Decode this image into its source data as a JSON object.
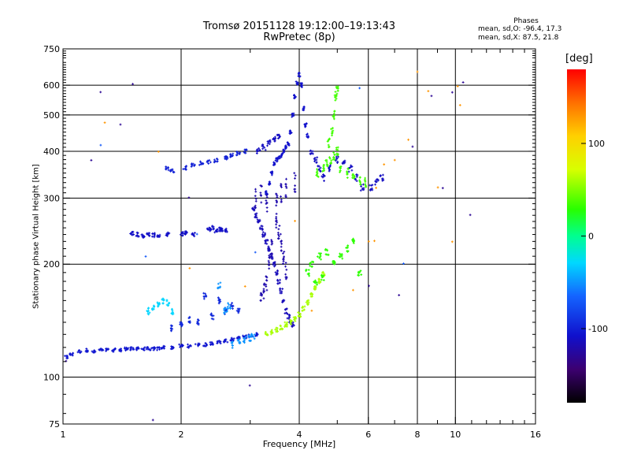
{
  "chart_data": {
    "type": "scatter",
    "title": "Tromsø 20151128 19:12:00–19:13:43",
    "subtitle": "RwPretec (8p)",
    "stats": {
      "heading": "Phases",
      "line_o": "mean, sd,O: -96.4, 17.3",
      "line_x": "mean, sd,X:  87.5, 21.8"
    },
    "xlabel": "Frequency [MHz]",
    "ylabel": "Stationary phase Virtual Height [km]",
    "xscale": "log",
    "yscale": "log",
    "xlim": [
      1,
      16
    ],
    "ylim": [
      75,
      750
    ],
    "grid": true,
    "x_ticks": [
      "1",
      "2",
      "4",
      "6",
      "8",
      "10",
      "16"
    ],
    "x_tick_values": [
      1,
      2,
      4,
      6,
      8,
      10,
      16
    ],
    "x_grid_values": [
      2,
      4,
      6,
      8,
      10
    ],
    "x_minor_values": [
      3,
      5,
      7,
      9,
      11,
      12,
      13,
      14,
      15
    ],
    "y_ticks": [
      "75",
      "100",
      "200",
      "300",
      "400",
      "500",
      "600",
      "750"
    ],
    "y_tick_values": [
      75,
      100,
      200,
      300,
      400,
      500,
      600,
      750
    ],
    "y_grid_values": [
      100,
      200,
      300,
      400,
      500,
      600
    ],
    "colorbar": {
      "label": "[deg]",
      "range": [
        -180,
        180
      ],
      "tick_labels": [
        "100",
        "0",
        "-100"
      ],
      "tick_values": [
        100,
        0,
        -100
      ]
    },
    "series": [
      {
        "phase": -105,
        "spread_x": 0.012,
        "spread_y": 0.01,
        "points": [
          [
            1.02,
            113
          ],
          [
            1.05,
            115
          ],
          [
            1.1,
            117
          ],
          [
            1.15,
            118
          ],
          [
            1.2,
            117
          ],
          [
            1.25,
            118
          ],
          [
            1.3,
            118
          ],
          [
            1.35,
            118
          ],
          [
            1.4,
            118
          ],
          [
            1.45,
            119
          ],
          [
            1.5,
            119
          ],
          [
            1.55,
            119
          ],
          [
            1.6,
            119
          ],
          [
            1.65,
            119
          ],
          [
            1.7,
            119
          ],
          [
            1.75,
            119
          ],
          [
            1.8,
            120
          ],
          [
            1.9,
            120
          ],
          [
            2.0,
            121
          ],
          [
            2.1,
            121
          ],
          [
            2.2,
            122
          ],
          [
            2.3,
            122
          ],
          [
            2.4,
            123
          ],
          [
            2.5,
            124
          ],
          [
            2.6,
            125
          ],
          [
            2.7,
            126
          ],
          [
            2.8,
            127
          ],
          [
            2.9,
            128
          ],
          [
            3.0,
            129
          ],
          [
            3.1,
            130
          ]
        ]
      },
      {
        "phase": -110,
        "spread_x": 0.01,
        "spread_y": 0.012,
        "points": [
          [
            1.5,
            242
          ],
          [
            1.55,
            240
          ],
          [
            1.6,
            238
          ],
          [
            1.65,
            240
          ],
          [
            1.7,
            239
          ],
          [
            1.75,
            238
          ],
          [
            1.85,
            240
          ],
          [
            2.0,
            241
          ],
          [
            2.05,
            242
          ],
          [
            2.15,
            240
          ],
          [
            2.35,
            248
          ],
          [
            2.4,
            250
          ],
          [
            2.45,
            246
          ],
          [
            2.5,
            248
          ],
          [
            2.55,
            247
          ],
          [
            2.6,
            246
          ]
        ]
      },
      {
        "phase": -100,
        "spread_x": 0.012,
        "spread_y": 0.012,
        "points": [
          [
            1.85,
            360
          ],
          [
            1.9,
            355
          ],
          [
            2.05,
            362
          ],
          [
            2.15,
            368
          ],
          [
            2.25,
            372
          ],
          [
            2.35,
            375
          ],
          [
            2.45,
            378
          ],
          [
            2.6,
            385
          ],
          [
            2.7,
            390
          ],
          [
            2.8,
            395
          ],
          [
            2.9,
            400
          ]
        ]
      },
      {
        "phase": -95,
        "spread_x": 0.008,
        "spread_y": 0.02,
        "points": [
          [
            2.2,
            140
          ],
          [
            2.4,
            145
          ],
          [
            2.6,
            150
          ],
          [
            2.7,
            155
          ],
          [
            2.8,
            150
          ],
          [
            2.5,
            160
          ],
          [
            2.3,
            165
          ],
          [
            2.0,
            138
          ],
          [
            1.9,
            135
          ],
          [
            2.1,
            142
          ]
        ]
      },
      {
        "phase": -115,
        "spread_x": 0.008,
        "spread_y": 0.015,
        "points": [
          [
            3.05,
            280
          ],
          [
            3.1,
            270
          ],
          [
            3.15,
            260
          ],
          [
            3.2,
            250
          ],
          [
            3.25,
            240
          ],
          [
            3.3,
            230
          ],
          [
            3.35,
            220
          ],
          [
            3.4,
            210
          ],
          [
            3.45,
            200
          ],
          [
            3.5,
            190
          ],
          [
            3.55,
            180
          ],
          [
            3.6,
            170
          ],
          [
            3.65,
            160
          ],
          [
            3.7,
            150
          ],
          [
            3.75,
            145
          ],
          [
            3.8,
            140
          ],
          [
            3.85,
            138
          ]
        ]
      },
      {
        "phase": -108,
        "spread_x": 0.006,
        "spread_y": 0.012,
        "points": [
          [
            3.3,
            310
          ],
          [
            3.35,
            330
          ],
          [
            3.4,
            350
          ],
          [
            3.45,
            370
          ],
          [
            3.5,
            380
          ],
          [
            3.55,
            385
          ],
          [
            3.6,
            390
          ],
          [
            3.65,
            400
          ],
          [
            3.7,
            410
          ],
          [
            3.75,
            420
          ],
          [
            3.8,
            450
          ],
          [
            3.85,
            500
          ],
          [
            3.9,
            560
          ],
          [
            3.95,
            610
          ],
          [
            4.0,
            640
          ],
          [
            4.05,
            600
          ],
          [
            4.1,
            520
          ],
          [
            4.15,
            470
          ],
          [
            4.2,
            440
          ]
        ]
      },
      {
        "phase": -120,
        "spread_x": 0.004,
        "spread_y": 0.06,
        "points": [
          [
            3.1,
            300
          ],
          [
            3.2,
            310
          ],
          [
            3.3,
            290
          ],
          [
            3.5,
            300
          ],
          [
            3.6,
            310
          ],
          [
            3.7,
            320
          ],
          [
            3.9,
            330
          ],
          [
            3.5,
            260
          ],
          [
            3.55,
            240
          ],
          [
            3.4,
            220
          ],
          [
            3.35,
            200
          ],
          [
            3.3,
            180
          ],
          [
            3.25,
            170
          ],
          [
            3.2,
            160
          ],
          [
            3.6,
            230
          ],
          [
            3.65,
            210
          ],
          [
            3.7,
            190
          ]
        ]
      },
      {
        "phase": -112,
        "spread_x": 0.01,
        "spread_y": 0.02,
        "points": [
          [
            3.15,
            400
          ],
          [
            3.25,
            410
          ],
          [
            3.35,
            420
          ],
          [
            3.45,
            430
          ],
          [
            3.55,
            440
          ],
          [
            4.3,
            400
          ],
          [
            4.4,
            380
          ],
          [
            4.5,
            360
          ],
          [
            4.6,
            340
          ],
          [
            4.8,
            360
          ],
          [
            5.0,
            380
          ],
          [
            5.2,
            370
          ],
          [
            5.4,
            360
          ],
          [
            5.6,
            340
          ],
          [
            5.8,
            320
          ],
          [
            6.1,
            320
          ],
          [
            6.3,
            330
          ],
          [
            6.5,
            340
          ]
        ]
      },
      {
        "phase": 60,
        "spread_x": 0.008,
        "spread_y": 0.015,
        "points": [
          [
            3.3,
            130
          ],
          [
            3.4,
            132
          ],
          [
            3.5,
            134
          ],
          [
            3.6,
            136
          ],
          [
            3.7,
            138
          ],
          [
            3.8,
            140
          ],
          [
            3.9,
            143
          ],
          [
            4.0,
            147
          ],
          [
            4.1,
            152
          ],
          [
            4.2,
            158
          ],
          [
            4.3,
            165
          ],
          [
            4.4,
            172
          ],
          [
            4.5,
            180
          ],
          [
            4.6,
            188
          ]
        ]
      },
      {
        "phase": 35,
        "spread_x": 0.006,
        "spread_y": 0.03,
        "points": [
          [
            4.6,
            360
          ],
          [
            4.7,
            370
          ],
          [
            4.8,
            380
          ],
          [
            4.9,
            390
          ],
          [
            5.0,
            400
          ],
          [
            4.85,
            450
          ],
          [
            4.9,
            500
          ],
          [
            4.95,
            560
          ],
          [
            5.0,
            580
          ],
          [
            4.75,
            420
          ],
          [
            5.1,
            360
          ],
          [
            5.3,
            350
          ],
          [
            5.5,
            340
          ],
          [
            5.7,
            335
          ],
          [
            5.9,
            330
          ],
          [
            4.45,
            350
          ]
        ]
      },
      {
        "phase": 30,
        "spread_x": 0.01,
        "spread_y": 0.02,
        "points": [
          [
            4.2,
            190
          ],
          [
            4.3,
            200
          ],
          [
            4.5,
            210
          ],
          [
            4.7,
            215
          ],
          [
            4.9,
            200
          ],
          [
            5.1,
            210
          ],
          [
            5.3,
            220
          ],
          [
            5.5,
            230
          ],
          [
            5.7,
            190
          ],
          [
            4.4,
            180
          ],
          [
            4.6,
            185
          ]
        ]
      },
      {
        "phase": -30,
        "spread_x": 0.008,
        "spread_y": 0.02,
        "points": [
          [
            1.65,
            150
          ],
          [
            1.7,
            152
          ],
          [
            1.75,
            155
          ],
          [
            1.8,
            160
          ],
          [
            1.85,
            158
          ],
          [
            1.9,
            150
          ]
        ]
      },
      {
        "phase": -50,
        "spread_x": 0.01,
        "spread_y": 0.02,
        "points": [
          [
            2.7,
            122
          ],
          [
            2.8,
            124
          ],
          [
            2.9,
            126
          ],
          [
            3.0,
            127
          ],
          [
            3.05,
            128
          ],
          [
            2.6,
            150
          ],
          [
            2.65,
            155
          ],
          [
            2.5,
            175
          ]
        ]
      },
      {
        "phase": 130,
        "spread_x": 0.004,
        "spread_y": 0.004,
        "points": [
          [
            1.28,
            475
          ],
          [
            1.75,
            400
          ],
          [
            2.1,
            195
          ],
          [
            2.9,
            175
          ],
          [
            3.9,
            260
          ],
          [
            4.3,
            150
          ],
          [
            5.5,
            170
          ],
          [
            6.0,
            230
          ],
          [
            6.3,
            320
          ],
          [
            6.6,
            370
          ],
          [
            7.0,
            380
          ],
          [
            7.6,
            430
          ],
          [
            8.0,
            650
          ],
          [
            8.5,
            580
          ],
          [
            9.0,
            320
          ],
          [
            10.1,
            595
          ],
          [
            10.3,
            530
          ],
          [
            9.8,
            230
          ],
          [
            6.2,
            230
          ]
        ]
      },
      {
        "phase": -130,
        "spread_x": 0.004,
        "spread_y": 0.004,
        "points": [
          [
            1.02,
            110
          ],
          [
            1.18,
            380
          ],
          [
            1.25,
            575
          ],
          [
            1.4,
            470
          ],
          [
            1.5,
            605
          ],
          [
            2.1,
            300
          ],
          [
            3.0,
            95
          ],
          [
            6.0,
            175
          ],
          [
            7.2,
            165
          ],
          [
            7.8,
            410
          ],
          [
            8.7,
            560
          ],
          [
            9.3,
            320
          ],
          [
            9.8,
            575
          ],
          [
            10.5,
            610
          ],
          [
            10.9,
            270
          ],
          [
            1.7,
            77
          ]
        ]
      },
      {
        "phase": -70,
        "spread_x": 0.004,
        "spread_y": 0.004,
        "points": [
          [
            1.25,
            415
          ],
          [
            1.62,
            210
          ],
          [
            2.2,
            240
          ],
          [
            3.1,
            215
          ],
          [
            7.4,
            200
          ],
          [
            5.7,
            590
          ]
        ]
      }
    ]
  }
}
